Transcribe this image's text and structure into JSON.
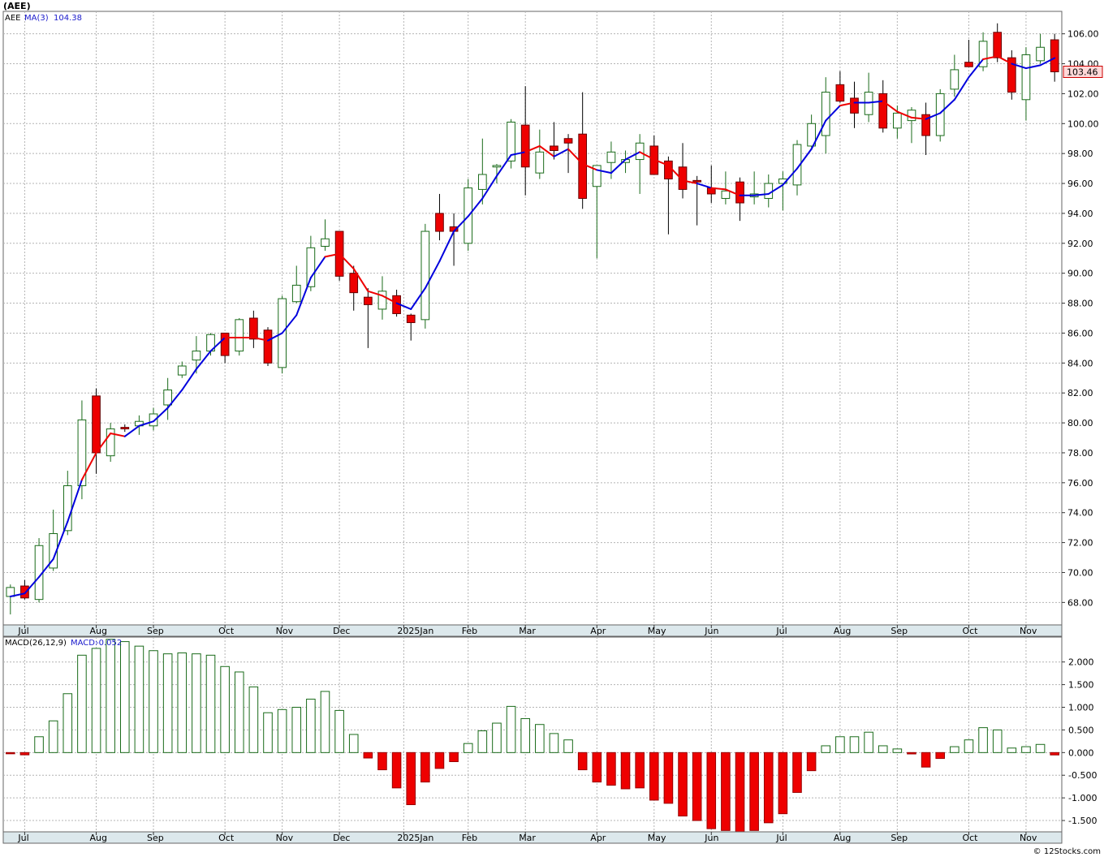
{
  "title": "(AEE)",
  "footer": "© 12Stocks.com",
  "colors": {
    "up_candle": "#1a6b1a",
    "down_candle": "#ee0000",
    "ma_up": "#0000dd",
    "ma_down": "#ee0000",
    "macd_pos": "#1a6b1a",
    "macd_neg": "#ee0000",
    "grid": "#b4b4b4",
    "axis_band": "#dce8ec"
  },
  "chart_data": [
    {
      "type": "candlestick",
      "name": "price",
      "legend": {
        "symbol": "AEE",
        "ma_label": "MA(3)",
        "ma_value": "104.38"
      },
      "last_price_label": "103.46",
      "ylim": [
        66.5,
        107.5
      ],
      "y_ticks": [
        68,
        70,
        72,
        74,
        76,
        78,
        80,
        82,
        84,
        86,
        88,
        90,
        92,
        94,
        96,
        98,
        100,
        102,
        104,
        106
      ],
      "x_labels": [
        "Jul",
        "Aug",
        "Sep",
        "Oct",
        "Nov",
        "Dec",
        "2025Jan",
        "Feb",
        "Mar",
        "Apr",
        "May",
        "Jun",
        "Jul",
        "Aug",
        "Sep",
        "Oct",
        "Nov"
      ],
      "x_label_positions": [
        1.5,
        6.5,
        10.5,
        15.5,
        19.5,
        23.5,
        28,
        32.5,
        36.5,
        41.5,
        45.5,
        49.5,
        54.5,
        58.5,
        62.5,
        67.5,
        71.5
      ],
      "ohlc": [
        [
          68.4,
          69.2,
          67.2,
          69.0
        ],
        [
          69.1,
          69.5,
          68.2,
          68.3
        ],
        [
          68.2,
          72.3,
          68.0,
          71.8
        ],
        [
          70.3,
          74.2,
          70.1,
          72.6
        ],
        [
          72.8,
          76.8,
          72.5,
          75.8
        ],
        [
          75.8,
          81.5,
          74.9,
          80.2
        ],
        [
          81.8,
          82.3,
          76.6,
          78.0
        ],
        [
          77.8,
          80.0,
          77.4,
          79.6
        ],
        [
          79.7,
          79.9,
          79.4,
          79.6
        ],
        [
          79.8,
          80.5,
          79.2,
          80.1
        ],
        [
          79.8,
          81.0,
          79.5,
          80.6
        ],
        [
          81.2,
          83.0,
          80.2,
          82.2
        ],
        [
          83.2,
          84.1,
          83.0,
          83.8
        ],
        [
          84.2,
          85.8,
          83.3,
          84.8
        ],
        [
          84.8,
          86.0,
          84.5,
          85.9
        ],
        [
          86.0,
          86.0,
          84.0,
          84.5
        ],
        [
          84.8,
          87.0,
          84.5,
          86.9
        ],
        [
          87.0,
          87.5,
          85.0,
          85.6
        ],
        [
          86.2,
          86.4,
          83.8,
          84.0
        ],
        [
          83.7,
          88.5,
          83.3,
          88.3
        ],
        [
          88.1,
          90.5,
          88.0,
          89.2
        ],
        [
          89.1,
          92.5,
          88.8,
          91.7
        ],
        [
          91.8,
          93.6,
          91.5,
          92.3
        ],
        [
          92.8,
          92.8,
          89.5,
          89.8
        ],
        [
          90.0,
          90.5,
          87.5,
          88.7
        ],
        [
          88.4,
          89.0,
          85.0,
          87.9
        ],
        [
          87.6,
          89.8,
          86.9,
          88.8
        ],
        [
          88.5,
          88.9,
          87.1,
          87.3
        ],
        [
          87.2,
          87.3,
          85.5,
          86.7
        ],
        [
          86.9,
          93.3,
          86.3,
          92.8
        ],
        [
          94.0,
          95.3,
          92.2,
          92.8
        ],
        [
          93.1,
          94.0,
          90.5,
          92.8
        ],
        [
          92.0,
          96.3,
          91.5,
          95.7
        ],
        [
          95.6,
          99.0,
          94.6,
          96.6
        ],
        [
          97.1,
          97.3,
          96.0,
          97.2
        ],
        [
          97.5,
          100.3,
          97.0,
          100.1
        ],
        [
          99.9,
          102.5,
          95.2,
          97.1
        ],
        [
          96.7,
          99.6,
          96.3,
          98.1
        ],
        [
          98.5,
          100.1,
          97.6,
          98.2
        ],
        [
          99.0,
          99.3,
          96.7,
          98.7
        ],
        [
          99.3,
          102.1,
          94.3,
          95.0
        ],
        [
          95.8,
          97.2,
          91.0,
          97.2
        ],
        [
          97.4,
          98.8,
          96.3,
          98.1
        ],
        [
          97.4,
          98.2,
          96.7,
          97.6
        ],
        [
          97.6,
          99.3,
          95.3,
          98.7
        ],
        [
          98.5,
          99.2,
          96.7,
          96.6
        ],
        [
          97.5,
          97.8,
          92.6,
          96.3
        ],
        [
          97.1,
          98.7,
          95.0,
          95.6
        ],
        [
          96.2,
          96.5,
          93.2,
          96.1
        ],
        [
          95.7,
          97.2,
          94.7,
          95.3
        ],
        [
          95.0,
          96.8,
          94.6,
          95.5
        ],
        [
          96.1,
          96.4,
          93.5,
          94.7
        ],
        [
          95.1,
          96.8,
          94.6,
          95.3
        ],
        [
          95.0,
          96.6,
          94.4,
          96.0
        ],
        [
          96.0,
          96.8,
          94.2,
          96.3
        ],
        [
          95.9,
          98.9,
          95.2,
          98.6
        ],
        [
          98.5,
          100.6,
          98.4,
          100.0
        ],
        [
          99.2,
          103.1,
          98.0,
          102.1
        ],
        [
          102.6,
          103.5,
          101.4,
          101.5
        ],
        [
          101.7,
          102.8,
          99.7,
          100.7
        ],
        [
          100.6,
          103.4,
          100.1,
          102.1
        ],
        [
          102.0,
          102.9,
          99.4,
          99.7
        ],
        [
          99.7,
          101.2,
          99.0,
          100.7
        ],
        [
          100.2,
          101.1,
          98.7,
          100.9
        ],
        [
          100.6,
          101.4,
          97.9,
          99.2
        ],
        [
          99.2,
          102.3,
          98.8,
          102.0
        ],
        [
          102.3,
          104.6,
          101.8,
          103.6
        ],
        [
          104.1,
          105.6,
          103.8,
          103.8
        ],
        [
          103.8,
          106.1,
          103.5,
          105.5
        ],
        [
          106.1,
          106.7,
          104.1,
          104.4
        ],
        [
          104.4,
          104.9,
          101.6,
          102.1
        ],
        [
          101.6,
          105.1,
          100.2,
          104.6
        ],
        [
          104.2,
          106.0,
          104.0,
          105.1
        ],
        [
          105.6,
          106.0,
          102.8,
          103.46
        ]
      ],
      "ma3": [
        68.4,
        68.6,
        69.7,
        70.9,
        73.4,
        76.2,
        78.0,
        79.3,
        79.1,
        79.8,
        80.1,
        81.0,
        82.2,
        83.6,
        84.8,
        85.7,
        85.7,
        85.7,
        85.5,
        86.0,
        87.2,
        89.7,
        91.1,
        91.3,
        90.3,
        88.8,
        88.5,
        88.0,
        87.6,
        89.0,
        90.8,
        92.8,
        93.8,
        95.0,
        96.5,
        97.9,
        98.1,
        98.5,
        97.8,
        98.3,
        97.3,
        96.9,
        96.7,
        97.6,
        98.1,
        97.6,
        97.2,
        96.2,
        96.0,
        95.7,
        95.6,
        95.2,
        95.2,
        95.3,
        95.9,
        97.0,
        98.3,
        100.2,
        101.2,
        101.4,
        101.4,
        101.5,
        100.8,
        100.4,
        100.3,
        100.7,
        101.6,
        103.1,
        104.3,
        104.5,
        104.0,
        103.7,
        103.9,
        104.38
      ],
      "ma_down_weeks": [
        6,
        7,
        8,
        16,
        17,
        18,
        23,
        24,
        25,
        26,
        27,
        37,
        38,
        40,
        41,
        45,
        46,
        47,
        48,
        50,
        51,
        59,
        62,
        63,
        64,
        69,
        70
      ]
    },
    {
      "type": "bar",
      "name": "macd",
      "legend": {
        "label": "MACD(26,12,9)",
        "macd_label": "MACD:",
        "macd_value": "-0.052"
      },
      "ylim": [
        -1.75,
        2.55
      ],
      "y_ticks": [
        2.0,
        1.5,
        1.0,
        0.5,
        0.0,
        -0.5,
        -1.0,
        -1.5
      ],
      "y_tick_labels": [
        "2.000",
        "1.500",
        "1.000",
        "0.500",
        "0.000",
        "-0.500",
        "-1.000",
        "-1.500"
      ],
      "values": [
        -0.02,
        -0.05,
        0.35,
        0.7,
        1.3,
        2.15,
        2.3,
        2.5,
        2.45,
        2.35,
        2.25,
        2.18,
        2.2,
        2.18,
        2.15,
        1.9,
        1.78,
        1.45,
        0.88,
        0.95,
        1.0,
        1.18,
        1.35,
        0.93,
        0.4,
        -0.12,
        -0.38,
        -0.78,
        -1.15,
        -0.65,
        -0.35,
        -0.2,
        0.2,
        0.48,
        0.65,
        1.02,
        0.75,
        0.62,
        0.42,
        0.28,
        -0.38,
        -0.65,
        -0.72,
        -0.8,
        -0.78,
        -1.05,
        -1.12,
        -1.4,
        -1.5,
        -1.68,
        -1.72,
        -1.78,
        -1.72,
        -1.55,
        -1.35,
        -0.88,
        -0.4,
        0.15,
        0.35,
        0.35,
        0.45,
        0.15,
        0.08,
        -0.03,
        -0.32,
        -0.13,
        0.13,
        0.28,
        0.55,
        0.5,
        0.1,
        0.13,
        0.18,
        -0.052
      ]
    }
  ]
}
